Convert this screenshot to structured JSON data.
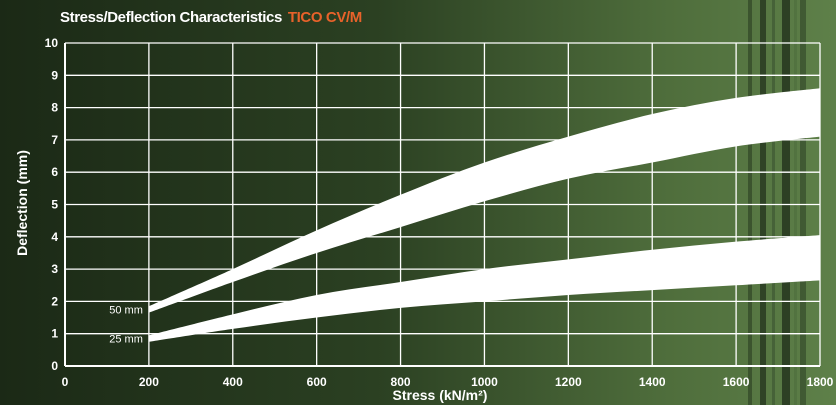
{
  "chart_data": {
    "type": "area",
    "title": "Stress/Deflection Characteristics",
    "title_highlight": "TICO CV/M",
    "title_highlight_color": "#e8622a",
    "xlabel": "Stress (kN/m²)",
    "ylabel": "Deflection (mm)",
    "xlim": [
      0,
      1800
    ],
    "ylim": [
      0,
      10
    ],
    "x_ticks": [
      "0",
      "200",
      "400",
      "600",
      "800",
      "1000",
      "1200",
      "1400",
      "1600",
      "1800"
    ],
    "y_ticks": [
      "0",
      "1",
      "2",
      "3",
      "4",
      "5",
      "6",
      "7",
      "8",
      "9",
      "10"
    ],
    "grid": true,
    "band_color": "#ffffff",
    "series": [
      {
        "name": "50 mm",
        "x": [
          200,
          400,
          600,
          800,
          1000,
          1200,
          1400,
          1600,
          1800
        ],
        "lower": [
          1.65,
          2.6,
          3.5,
          4.3,
          5.1,
          5.8,
          6.3,
          6.8,
          7.1
        ],
        "upper": [
          1.85,
          3.0,
          4.2,
          5.3,
          6.3,
          7.1,
          7.8,
          8.3,
          8.6
        ]
      },
      {
        "name": "25 mm",
        "x": [
          200,
          400,
          600,
          800,
          1000,
          1200,
          1400,
          1600,
          1800
        ],
        "lower": [
          0.75,
          1.15,
          1.5,
          1.8,
          2.0,
          2.2,
          2.35,
          2.5,
          2.65
        ],
        "upper": [
          0.95,
          1.6,
          2.2,
          2.6,
          3.0,
          3.3,
          3.6,
          3.85,
          4.05
        ]
      }
    ]
  }
}
